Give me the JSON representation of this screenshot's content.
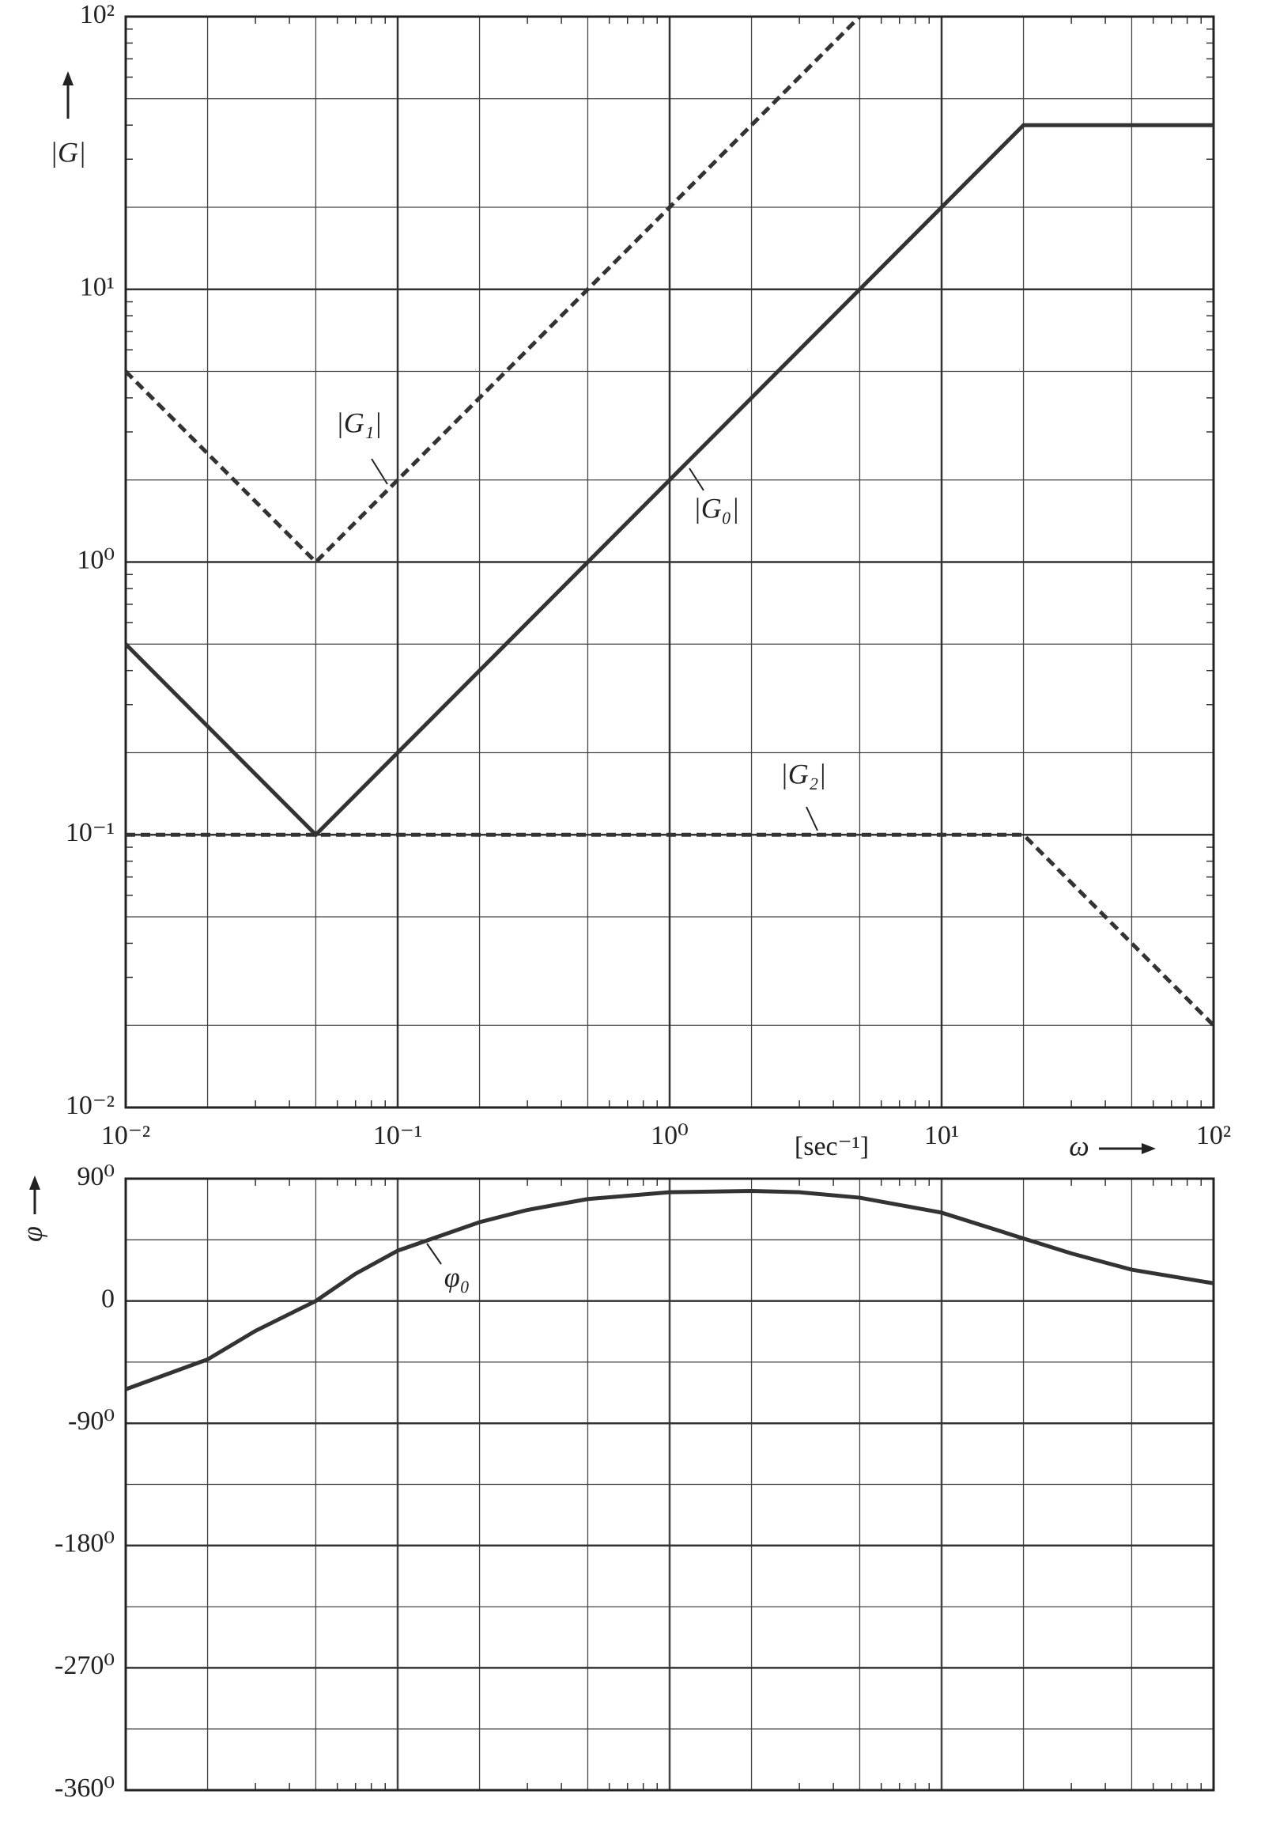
{
  "chart_data": [
    {
      "type": "line",
      "xscale": "log",
      "yscale": "log",
      "xlim": [
        0.01,
        100
      ],
      "ylim": [
        0.01,
        100
      ],
      "xticks": [
        {
          "value": 0.01,
          "label": "10⁻²"
        },
        {
          "value": 0.1,
          "label": "10⁻¹"
        },
        {
          "value": 1,
          "label": "10⁰"
        },
        {
          "value": 10,
          "label": "10¹"
        },
        {
          "value": 100,
          "label": "10²"
        }
      ],
      "yticks": [
        {
          "value": 0.01,
          "label": "10⁻²"
        },
        {
          "value": 0.1,
          "label": "10⁻¹"
        },
        {
          "value": 1,
          "label": "10⁰"
        },
        {
          "value": 10,
          "label": "10¹"
        },
        {
          "value": 100,
          "label": "10²"
        }
      ],
      "xgrid": [
        0.02,
        0.05,
        0.2,
        0.5,
        2,
        5,
        20,
        50
      ],
      "ygrid": [
        0.02,
        0.05,
        0.2,
        0.5,
        2,
        5,
        20,
        50
      ],
      "minor_ticks": [
        0.03,
        0.04,
        0.06,
        0.07,
        0.08,
        0.09,
        0.3,
        0.4,
        0.6,
        0.7,
        0.8,
        0.9,
        3,
        4,
        6,
        7,
        8,
        9,
        30,
        40,
        60,
        70,
        80,
        90
      ],
      "y_label": "|G|",
      "x_label": "ω",
      "x_unit": "[sec⁻¹]",
      "series": [
        {
          "name": "|G₀|",
          "color": "#333333",
          "style": "solid",
          "x": [
            0.01,
            0.05,
            20,
            100
          ],
          "values": [
            0.5,
            0.1,
            40,
            40
          ]
        },
        {
          "name": "|G₁|",
          "color": "#333333",
          "style": "dashed",
          "x": [
            0.01,
            0.05,
            5
          ],
          "values": [
            5,
            1,
            100
          ]
        },
        {
          "name": "|G₂|",
          "color": "#333333",
          "style": "dashed",
          "x": [
            0.01,
            20,
            100
          ],
          "values": [
            0.1,
            0.1,
            0.02
          ]
        }
      ]
    },
    {
      "type": "line",
      "xscale": "log",
      "xlim": [
        0.01,
        100
      ],
      "ylim": [
        -360,
        90
      ],
      "yticks": [
        {
          "value": 90,
          "label": "90⁰"
        },
        0,
        {
          "value": -90,
          "label": "-90⁰"
        },
        {
          "value": -180,
          "label": "-180⁰"
        },
        {
          "value": -270,
          "label": "-270⁰"
        },
        {
          "value": -360,
          "label": "-360⁰"
        }
      ],
      "xgrid": [
        0.01,
        0.02,
        0.05,
        0.1,
        0.2,
        0.5,
        1,
        2,
        5,
        10,
        20,
        50,
        100
      ],
      "ygrid": [
        45,
        -45,
        -135,
        -225,
        -315
      ],
      "minor_ticks": [
        0.03,
        0.04,
        0.06,
        0.07,
        0.08,
        0.09,
        0.3,
        0.4,
        0.6,
        0.7,
        0.8,
        0.9,
        3,
        4,
        6,
        7,
        8,
        9,
        30,
        40,
        60,
        70,
        80,
        90
      ],
      "y_label": "φ",
      "series": [
        {
          "name": "φ₀",
          "color": "#333333",
          "style": "solid",
          "x": [
            0.01,
            0.02,
            0.03,
            0.05,
            0.07,
            0.1,
            0.2,
            0.3,
            0.5,
            1,
            2,
            3,
            5,
            10,
            20,
            30,
            50,
            100
          ],
          "values": [
            -65,
            -43,
            -22,
            0,
            20,
            37,
            58,
            67,
            75,
            80,
            81,
            80,
            76,
            65,
            46,
            35,
            23,
            13
          ]
        }
      ]
    }
  ]
}
